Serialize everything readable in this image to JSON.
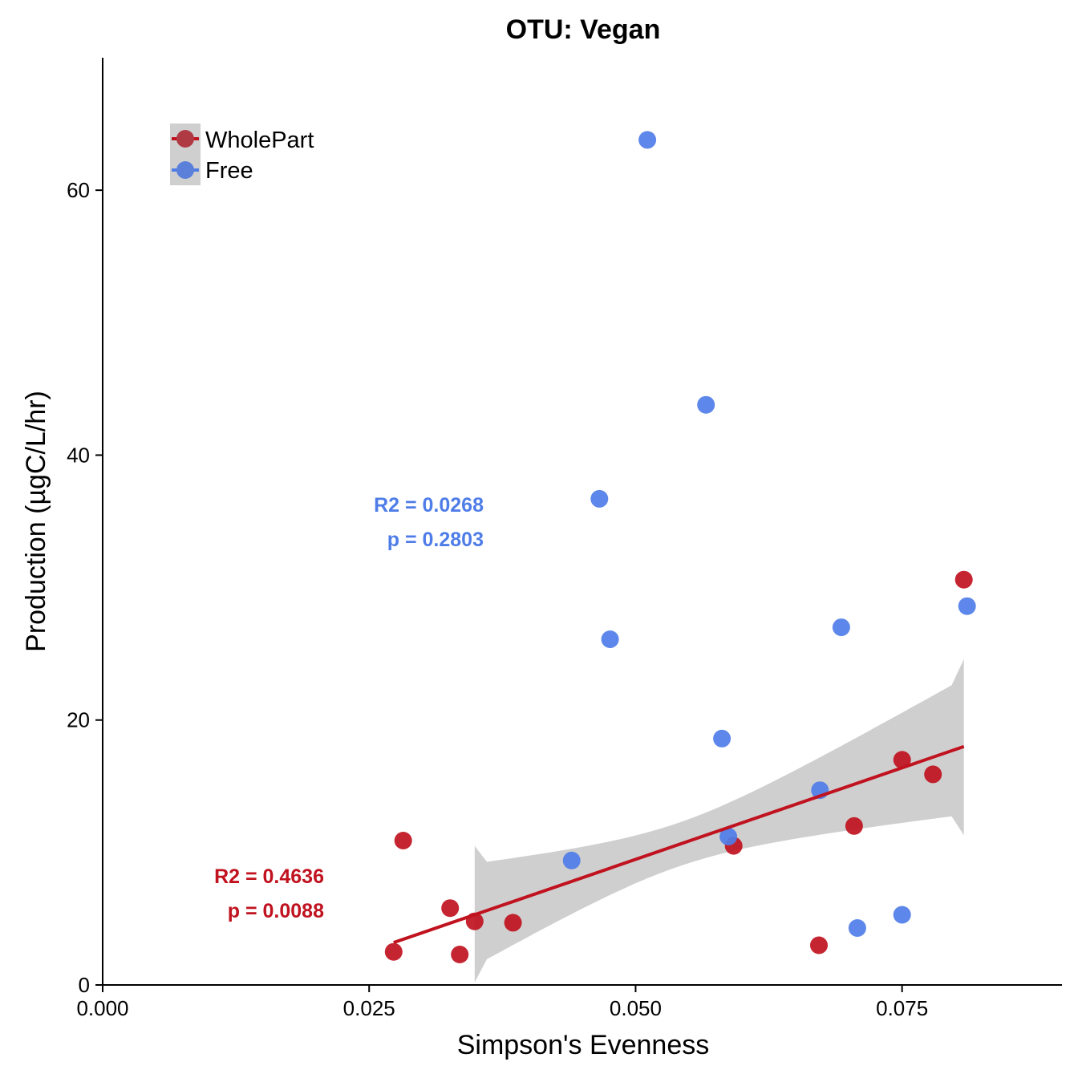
{
  "chart_data": {
    "type": "scatter",
    "title": "OTU: Vegan",
    "xlabel": "Simpson's Evenness",
    "ylabel": "Production (µgC/L/hr)",
    "xlim": [
      0.0,
      0.09
    ],
    "ylim": [
      0,
      70
    ],
    "x_ticks": [
      "0.000",
      "0.025",
      "0.050",
      "0.075"
    ],
    "x_tick_values": [
      0.0,
      0.025,
      0.05,
      0.075
    ],
    "y_ticks": [
      "0",
      "20",
      "40",
      "60"
    ],
    "y_tick_values": [
      0,
      20,
      40,
      60
    ],
    "legend_position": "top-left",
    "series": [
      {
        "name": "WholePart",
        "color": "#c0121f",
        "points": [
          [
            0.0273,
            2.5
          ],
          [
            0.0282,
            10.9
          ],
          [
            0.0326,
            5.8
          ],
          [
            0.0335,
            2.3
          ],
          [
            0.0349,
            4.8
          ],
          [
            0.0385,
            4.7
          ],
          [
            0.0592,
            10.5
          ],
          [
            0.0672,
            3.0
          ],
          [
            0.0705,
            12.0
          ],
          [
            0.075,
            17.0
          ],
          [
            0.0779,
            15.9
          ],
          [
            0.0808,
            30.6
          ]
        ],
        "fit_line": {
          "x": [
            0.0273,
            0.0808
          ],
          "y": [
            3.2,
            18.0
          ]
        },
        "confidence_band": {
          "x": [
            0.0349,
            0.0808
          ],
          "upper": [
            10.5,
            24.6
          ],
          "lower": [
            0.2,
            11.3
          ]
        },
        "stats": {
          "r2": "R2 = 0.4636",
          "p": "p = 0.0088"
        }
      },
      {
        "name": "Free",
        "color": "#4f7de8",
        "points": [
          [
            0.044,
            9.4
          ],
          [
            0.0466,
            36.7
          ],
          [
            0.0476,
            26.1
          ],
          [
            0.0511,
            63.8
          ],
          [
            0.0566,
            43.8
          ],
          [
            0.0581,
            18.6
          ],
          [
            0.0587,
            11.2
          ],
          [
            0.0673,
            14.7
          ],
          [
            0.0693,
            27.0
          ],
          [
            0.0708,
            4.3
          ],
          [
            0.075,
            5.3
          ],
          [
            0.0811,
            28.6
          ]
        ],
        "stats": {
          "r2": "R2 = 0.0268",
          "p": "p = 0.2803"
        }
      }
    ]
  }
}
